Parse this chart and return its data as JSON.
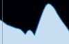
{
  "x": [
    0,
    1,
    2,
    3,
    4,
    5,
    6,
    7,
    8,
    9,
    10,
    11,
    12,
    13,
    14,
    15,
    16,
    17,
    18,
    19,
    20,
    21,
    22,
    23,
    24,
    25,
    26,
    27,
    28,
    29,
    30
  ],
  "y": [
    55,
    52,
    48,
    44,
    42,
    40,
    38,
    36,
    35,
    33,
    28,
    22,
    30,
    32,
    28,
    20,
    35,
    50,
    65,
    78,
    88,
    92,
    90,
    85,
    78,
    68,
    60,
    52,
    45,
    38,
    30
  ],
  "line_color": "#1a7abf",
  "fill_color": "#c5dff0",
  "background_color": "#000008",
  "ylim": [
    0,
    100
  ],
  "vline_x": 1,
  "vline_color": "#888888"
}
